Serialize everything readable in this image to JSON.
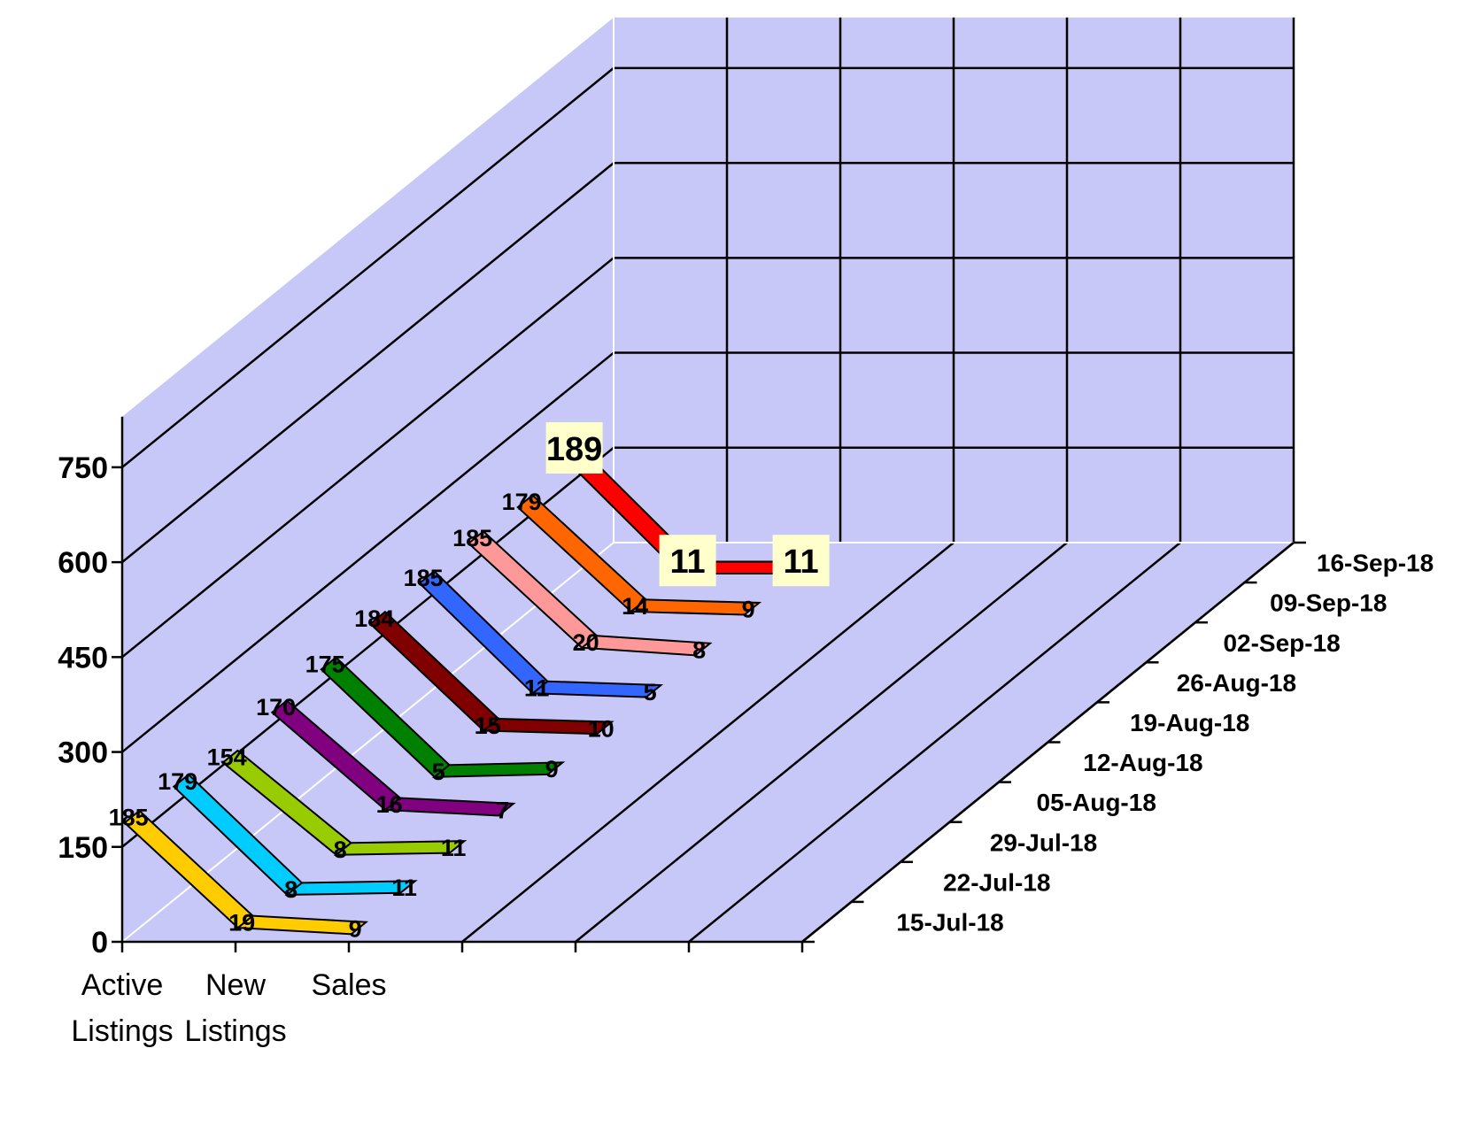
{
  "chart_data": {
    "type": "line",
    "style": "3d-ribbon",
    "categories": [
      "Active Listings",
      "New Listings",
      "Sales"
    ],
    "category_lines": [
      [
        "Active",
        "Listings"
      ],
      [
        "New",
        "Listings"
      ],
      [
        "Sales"
      ]
    ],
    "yticks": [
      "0",
      "150",
      "300",
      "450",
      "600",
      "750"
    ],
    "ylim": [
      0,
      750
    ],
    "grid": true,
    "background_color": "#c8c8f8",
    "series": [
      {
        "name": "15-Jul-18",
        "values": [
          185,
          19,
          9
        ],
        "color": "#ffcc00"
      },
      {
        "name": "22-Jul-18",
        "values": [
          179,
          8,
          11
        ],
        "color": "#00ccff"
      },
      {
        "name": "29-Jul-18",
        "values": [
          154,
          8,
          11
        ],
        "color": "#99cc00"
      },
      {
        "name": "05-Aug-18",
        "values": [
          170,
          16,
          7
        ],
        "color": "#800080"
      },
      {
        "name": "12-Aug-18",
        "values": [
          175,
          5,
          9
        ],
        "color": "#008000"
      },
      {
        "name": "19-Aug-18",
        "values": [
          184,
          15,
          10
        ],
        "color": "#800000"
      },
      {
        "name": "26-Aug-18",
        "values": [
          185,
          11,
          5
        ],
        "color": "#3366ff"
      },
      {
        "name": "02-Sep-18",
        "values": [
          185,
          20,
          8
        ],
        "color": "#ff9999"
      },
      {
        "name": "09-Sep-18",
        "values": [
          179,
          14,
          9
        ],
        "color": "#ff6600"
      },
      {
        "name": "16-Sep-18",
        "values": [
          189,
          11,
          11
        ],
        "color": "#ff0000",
        "highlight": true
      }
    ]
  }
}
